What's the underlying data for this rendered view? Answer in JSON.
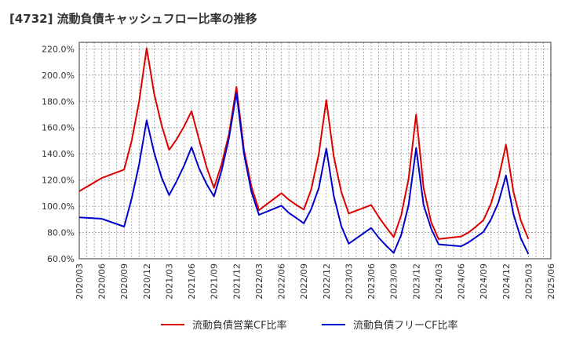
{
  "chart_data": {
    "type": "line",
    "title": "[4732]  流動負債キャッシュフロー比率の推移",
    "xlabel": "",
    "ylabel": "",
    "ylim": [
      60,
      225
    ],
    "yticks": [
      60,
      80,
      100,
      120,
      140,
      160,
      180,
      200,
      220
    ],
    "ytick_suffix": ".0%",
    "grid": true,
    "legend_position": "bottom-center",
    "x_ticks": [
      "2020/03",
      "2020/06",
      "2020/09",
      "2020/12",
      "2021/03",
      "2021/06",
      "2021/09",
      "2021/12",
      "2022/03",
      "2022/06",
      "2022/09",
      "2022/12",
      "2023/03",
      "2023/06",
      "2023/09",
      "2023/12",
      "2024/03",
      "2024/06",
      "2024/09",
      "2024/12",
      "2025/03",
      "2025/06"
    ],
    "series": [
      {
        "name": "流動負債営業CF比率",
        "color": "#dd0000",
        "points": [
          [
            "2020/03",
            111.5
          ],
          [
            "2020/06",
            121.5
          ],
          [
            "2020/09",
            128
          ],
          [
            "2020/10",
            150
          ],
          [
            "2020/11",
            180
          ],
          [
            "2020/12",
            220.5
          ],
          [
            "2021/01",
            186
          ],
          [
            "2021/02",
            162
          ],
          [
            "2021/03",
            143
          ],
          [
            "2021/04",
            151
          ],
          [
            "2021/05",
            161
          ],
          [
            "2021/06",
            172.5
          ],
          [
            "2021/07",
            151
          ],
          [
            "2021/08",
            130
          ],
          [
            "2021/09",
            114
          ],
          [
            "2021/10",
            132
          ],
          [
            "2021/11",
            155
          ],
          [
            "2021/12",
            191
          ],
          [
            "2022/01",
            143
          ],
          [
            "2022/02",
            115
          ],
          [
            "2022/03",
            97
          ],
          [
            "2022/06",
            110
          ],
          [
            "2022/07",
            105
          ],
          [
            "2022/08",
            101
          ],
          [
            "2022/09",
            97.5
          ],
          [
            "2022/10",
            113
          ],
          [
            "2022/11",
            140
          ],
          [
            "2022/12",
            181
          ],
          [
            "2023/01",
            138
          ],
          [
            "2023/02",
            111
          ],
          [
            "2023/03",
            94.5
          ],
          [
            "2023/06",
            101
          ],
          [
            "2023/07",
            92
          ],
          [
            "2023/08",
            84
          ],
          [
            "2023/09",
            76.5
          ],
          [
            "2023/10",
            93
          ],
          [
            "2023/11",
            121
          ],
          [
            "2023/12",
            170
          ],
          [
            "2024/01",
            114
          ],
          [
            "2024/02",
            88
          ],
          [
            "2024/03",
            75
          ],
          [
            "2024/06",
            77
          ],
          [
            "2024/07",
            80
          ],
          [
            "2024/08",
            84.5
          ],
          [
            "2024/09",
            89.5
          ],
          [
            "2024/10",
            102
          ],
          [
            "2024/11",
            121
          ],
          [
            "2024/12",
            147
          ],
          [
            "2025/01",
            111
          ],
          [
            "2025/02",
            89
          ],
          [
            "2025/03",
            75
          ]
        ]
      },
      {
        "name": "流動負債フリーCF比率",
        "color": "#0000cc",
        "points": [
          [
            "2020/03",
            91.5
          ],
          [
            "2020/06",
            90.5
          ],
          [
            "2020/09",
            84.5
          ],
          [
            "2020/10",
            106
          ],
          [
            "2020/11",
            132
          ],
          [
            "2020/12",
            165.5
          ],
          [
            "2021/01",
            141
          ],
          [
            "2021/02",
            122
          ],
          [
            "2021/03",
            108.5
          ],
          [
            "2021/04",
            119
          ],
          [
            "2021/05",
            131
          ],
          [
            "2021/06",
            145
          ],
          [
            "2021/07",
            129
          ],
          [
            "2021/08",
            117
          ],
          [
            "2021/09",
            107.5
          ],
          [
            "2021/10",
            127
          ],
          [
            "2021/11",
            152
          ],
          [
            "2021/12",
            186.5
          ],
          [
            "2022/01",
            140
          ],
          [
            "2022/02",
            111
          ],
          [
            "2022/03",
            93.5
          ],
          [
            "2022/06",
            100.5
          ],
          [
            "2022/07",
            95
          ],
          [
            "2022/08",
            91
          ],
          [
            "2022/09",
            87
          ],
          [
            "2022/10",
            98
          ],
          [
            "2022/11",
            114
          ],
          [
            "2022/12",
            144
          ],
          [
            "2023/01",
            108
          ],
          [
            "2023/02",
            85
          ],
          [
            "2023/03",
            71.5
          ],
          [
            "2023/06",
            83.5
          ],
          [
            "2023/07",
            76
          ],
          [
            "2023/08",
            70
          ],
          [
            "2023/09",
            64.5
          ],
          [
            "2023/10",
            78
          ],
          [
            "2023/11",
            101
          ],
          [
            "2023/12",
            144.5
          ],
          [
            "2024/01",
            101
          ],
          [
            "2024/02",
            83
          ],
          [
            "2024/03",
            71
          ],
          [
            "2024/06",
            69.5
          ],
          [
            "2024/07",
            72.5
          ],
          [
            "2024/08",
            76.5
          ],
          [
            "2024/09",
            80.5
          ],
          [
            "2024/10",
            90
          ],
          [
            "2024/11",
            103
          ],
          [
            "2024/12",
            123.5
          ],
          [
            "2025/01",
            94
          ],
          [
            "2025/02",
            75.5
          ],
          [
            "2025/03",
            63.5
          ]
        ]
      }
    ]
  }
}
